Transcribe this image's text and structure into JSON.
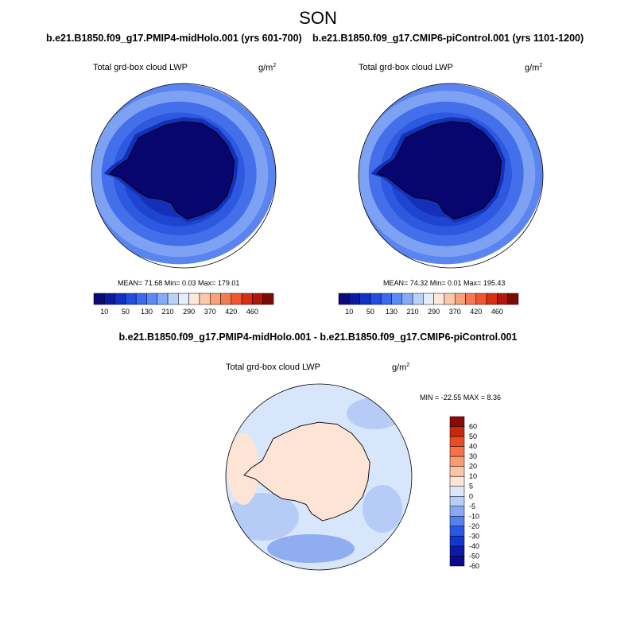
{
  "figure": {
    "title": "SON"
  },
  "panels": [
    {
      "case_title": "b.e21.B1850.f09_g17.PMIP4-midHolo.001 (yrs 601-700)",
      "variable": "Total grd-box cloud LWP",
      "units_base": "g/m",
      "units_exp": "2",
      "stats": "MEAN=  71.68  Min=   0.03  Max= 179.01"
    },
    {
      "case_title": "b.e21.B1850.f09_g17.CMIP6-piControl.001 (yrs 1101-1200)",
      "variable": "Total grd-box cloud LWP",
      "units_base": "g/m",
      "units_exp": "2",
      "stats": "MEAN=  74.32  Min=   0.01  Max= 195.43"
    }
  ],
  "diff_panel": {
    "case_title": "b.e21.B1850.f09_g17.PMIP4-midHolo.001 - b.e21.B1850.f09_g17.CMIP6-piControl.001",
    "variable": "Total grd-box cloud LWP",
    "units_base": "g/m",
    "units_exp": "2",
    "stats": "MIN = -22.55 MAX =   8.36"
  },
  "colorbar_top": {
    "colors": [
      "#0a0a7a",
      "#0b1ba0",
      "#1030c8",
      "#1f4ee0",
      "#3a6af0",
      "#5a8bf5",
      "#85aaf7",
      "#b9d2fa",
      "#e4effd",
      "#fde8da",
      "#fbc8a8",
      "#f8a17a",
      "#f47a52",
      "#ee5630",
      "#d82f14",
      "#b01808",
      "#7a0a04"
    ],
    "labels": [
      "10",
      "50",
      "130",
      "210",
      "290",
      "370",
      "420",
      "460"
    ]
  },
  "colorbar_diff": {
    "colors": [
      "#0a0a8a",
      "#0b1ba8",
      "#1236d0",
      "#2a58e6",
      "#5580ef",
      "#86a8f5",
      "#b5cdf8",
      "#dbe8fb",
      "#fde4d4",
      "#fcc4a6",
      "#f99c74",
      "#f4724a",
      "#ea4a24",
      "#c8280c",
      "#8c0a04"
    ],
    "labels": [
      "60",
      "50",
      "40",
      "30",
      "20",
      "10",
      "5",
      "0",
      "-5",
      "-10",
      "-20",
      "-30",
      "-40",
      "-50",
      "-60"
    ]
  },
  "map_colors": {
    "ring1": "#7da2f4",
    "ring2": "#5a84ef",
    "ring3": "#4370ea",
    "ring4": "#2d58e0",
    "ring5": "#1f44d0",
    "ring6": "#1430b8",
    "antarctica": "#06066e",
    "diff_ocean": "#d8e6fb",
    "diff_light": "#b6ccf6",
    "diff_mid": "#90adf1",
    "diff_land": "#fde4d4"
  }
}
